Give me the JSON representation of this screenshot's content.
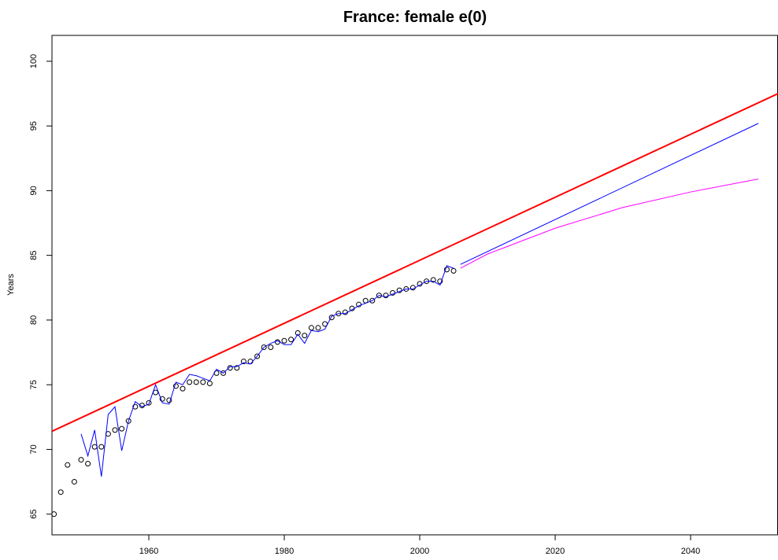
{
  "chart_data": {
    "type": "line",
    "title": "France: female e(0)",
    "ylabel": "Years",
    "xlim": [
      1945.7,
      2052.9
    ],
    "ylim": [
      63.4,
      102.0
    ],
    "xticks": [
      1960,
      1980,
      2000,
      2020,
      2040
    ],
    "yticks": [
      65,
      70,
      75,
      80,
      85,
      90,
      95,
      100
    ],
    "series": [
      {
        "color": "#000000",
        "marker": "circle",
        "x": [
          1946,
          1947,
          1948,
          1949,
          1950,
          1951,
          1952,
          1953,
          1954,
          1955,
          1956,
          1957,
          1958,
          1959,
          1960,
          1961,
          1962,
          1963,
          1964,
          1965,
          1966,
          1967,
          1968,
          1969,
          1970,
          1971,
          1972,
          1973,
          1974,
          1975,
          1976,
          1977,
          1978,
          1979,
          1980,
          1981,
          1982,
          1983,
          1984,
          1985,
          1986,
          1987,
          1988,
          1989,
          1990,
          1991,
          1992,
          1993,
          1994,
          1995,
          1996,
          1997,
          1998,
          1999,
          2000,
          2001,
          2002,
          2003,
          2004,
          2005
        ],
        "values": [
          65.0,
          66.7,
          68.8,
          67.5,
          69.2,
          68.9,
          70.2,
          70.2,
          71.2,
          71.5,
          71.6,
          72.2,
          73.3,
          73.4,
          73.6,
          74.4,
          73.9,
          73.8,
          74.9,
          74.7,
          75.2,
          75.2,
          75.2,
          75.1,
          75.9,
          75.9,
          76.3,
          76.3,
          76.8,
          76.8,
          77.2,
          77.9,
          77.9,
          78.3,
          78.4,
          78.5,
          79.0,
          78.8,
          79.4,
          79.4,
          79.7,
          80.2,
          80.5,
          80.6,
          80.9,
          81.2,
          81.5,
          81.5,
          81.9,
          81.9,
          82.1,
          82.3,
          82.4,
          82.5,
          82.8,
          83.0,
          83.1,
          83.0,
          83.9,
          83.8
        ]
      },
      {
        "color": "#0000ff",
        "line_width": 1,
        "x": [
          1950,
          1951,
          1952,
          1953,
          1954,
          1955,
          1956,
          1957,
          1958,
          1959,
          1960,
          1961,
          1962,
          1963,
          1964,
          1965,
          1966,
          1967,
          1968,
          1969,
          1970,
          1971,
          1972,
          1973,
          1974,
          1975,
          1976,
          1977,
          1978,
          1979,
          1980,
          1981,
          1982,
          1983,
          1984,
          1985,
          1986,
          1987,
          1988,
          1989,
          1990,
          1991,
          1992,
          1993,
          1994,
          1995,
          1996,
          1997,
          1998,
          1999,
          2000,
          2001,
          2002,
          2003,
          2004,
          2005
        ],
        "values": [
          71.2,
          69.5,
          71.5,
          67.9,
          72.7,
          73.3,
          69.9,
          72.2,
          73.7,
          73.3,
          73.5,
          75.0,
          73.6,
          73.5,
          75.2,
          75.0,
          75.8,
          75.7,
          75.5,
          75.3,
          76.2,
          75.9,
          76.4,
          76.4,
          76.7,
          76.6,
          77.2,
          77.9,
          78.2,
          78.4,
          78.1,
          78.1,
          78.9,
          78.2,
          79.2,
          79.1,
          79.3,
          80.3,
          80.5,
          80.5,
          80.8,
          81.1,
          81.3,
          81.5,
          81.9,
          81.8,
          82.0,
          82.2,
          82.4,
          82.4,
          82.7,
          83.0,
          83.0,
          82.7,
          84.2,
          84.0
        ]
      },
      {
        "color": "#0000ff",
        "line_width": 1,
        "x": [
          2006,
          2050
        ],
        "values": [
          84.3,
          95.2
        ]
      },
      {
        "color": "#ff00ff",
        "line_width": 1,
        "x": [
          2006,
          2010,
          2020,
          2030,
          2040,
          2050
        ],
        "values": [
          84.0,
          85.1,
          87.1,
          88.7,
          89.9,
          90.9
        ]
      },
      {
        "color": "#ff0000",
        "line_width": 2,
        "x": [
          1945.7,
          2052.9
        ],
        "values": [
          71.4,
          97.5
        ]
      }
    ]
  }
}
